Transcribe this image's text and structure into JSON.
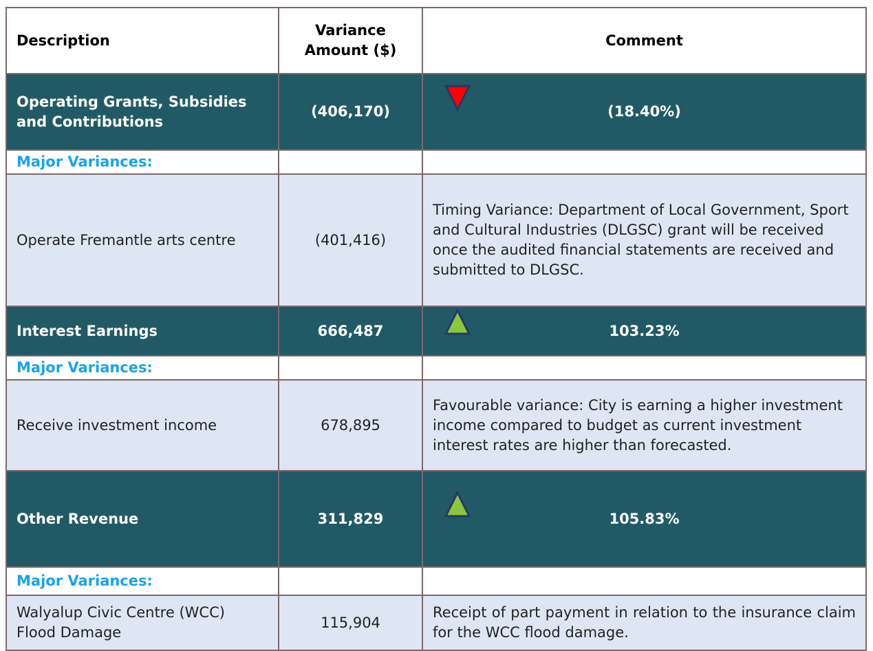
{
  "table": {
    "header": [
      "Description",
      "Variance Amount ($)",
      "Comment"
    ],
    "rows": [
      [
        "Operating Grants, Subsidies and Contributions",
        "(406,170)",
        "(18.40%)"
      ],
      [
        "Major Variances:"
      ],
      [
        "Operate Fremantle arts centre",
        "(401,416)",
        "Timing Variance: Department of Local Government, Sport and Cultural Industries (DLGSC) grant will be received once the audited financial statements are received and submitted to DLGSC."
      ],
      [
        "Interest Earnings",
        "666,487",
        "103.23%"
      ],
      [
        "Major Variances:"
      ],
      [
        "Receive investment income",
        "678,895",
        "Favourable variance: City is earning a higher investment income compared to budget as current investment interest rates are higher than forecasted."
      ],
      [
        "Other Revenue",
        "311,829",
        "105.83%"
      ],
      [
        "Major Variances:"
      ],
      [
        "Walyalup Civic Centre (WCC) Flood Damage",
        "115,904",
        "Receipt of part payment in relation to the insurance claim for the WCC flood damage."
      ]
    ]
  }
}
